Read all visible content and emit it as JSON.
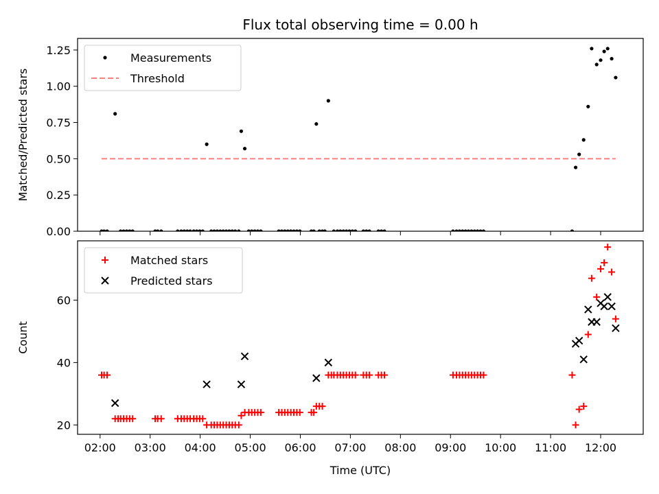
{
  "chart_data": [
    {
      "type": "scatter",
      "title": "Flux total observing time = 0.00 h",
      "ylabel": "Matched/Predicted stars",
      "xlabel": "",
      "xlim": [
        1.55,
        12.85
      ],
      "ylim": [
        0,
        1.33
      ],
      "x_ticks": [
        2,
        3,
        4,
        5,
        6,
        7,
        8,
        9,
        10,
        11,
        12
      ],
      "y_ticks": [
        0.0,
        0.25,
        0.5,
        0.75,
        1.0,
        1.25
      ],
      "y_tick_labels": [
        "0.00",
        "0.25",
        "0.50",
        "0.75",
        "1.00",
        "1.25"
      ],
      "legend_position": "top-left",
      "grid": false,
      "series": [
        {
          "name": "Measurements",
          "marker": "dot",
          "color": "#000000",
          "points": [
            [
              2.03,
              0
            ],
            [
              2.08,
              0
            ],
            [
              2.14,
              0
            ],
            [
              2.3,
              0.81
            ],
            [
              2.41,
              0
            ],
            [
              2.47,
              0
            ],
            [
              2.53,
              0
            ],
            [
              2.59,
              0
            ],
            [
              2.65,
              0
            ],
            [
              3.1,
              0
            ],
            [
              3.15,
              0
            ],
            [
              3.22,
              0
            ],
            [
              3.55,
              0
            ],
            [
              3.62,
              0
            ],
            [
              3.68,
              0
            ],
            [
              3.74,
              0
            ],
            [
              3.8,
              0
            ],
            [
              3.87,
              0
            ],
            [
              3.93,
              0
            ],
            [
              3.99,
              0
            ],
            [
              4.05,
              0
            ],
            [
              4.13,
              0.6
            ],
            [
              4.22,
              0
            ],
            [
              4.28,
              0
            ],
            [
              4.34,
              0
            ],
            [
              4.4,
              0
            ],
            [
              4.46,
              0
            ],
            [
              4.52,
              0
            ],
            [
              4.58,
              0
            ],
            [
              4.64,
              0
            ],
            [
              4.7,
              0
            ],
            [
              4.77,
              0
            ],
            [
              4.82,
              0.69
            ],
            [
              4.89,
              0.57
            ],
            [
              4.97,
              0
            ],
            [
              5.03,
              0
            ],
            [
              5.09,
              0
            ],
            [
              5.15,
              0
            ],
            [
              5.21,
              0
            ],
            [
              5.57,
              0
            ],
            [
              5.63,
              0
            ],
            [
              5.69,
              0
            ],
            [
              5.75,
              0
            ],
            [
              5.81,
              0
            ],
            [
              5.87,
              0
            ],
            [
              5.93,
              0
            ],
            [
              5.99,
              0
            ],
            [
              6.22,
              0
            ],
            [
              6.27,
              0
            ],
            [
              6.32,
              0.74
            ],
            [
              6.38,
              0
            ],
            [
              6.44,
              0
            ],
            [
              6.49,
              0
            ],
            [
              6.56,
              0.9
            ],
            [
              6.67,
              0
            ],
            [
              6.74,
              0
            ],
            [
              6.8,
              0
            ],
            [
              6.86,
              0
            ],
            [
              6.92,
              0
            ],
            [
              6.98,
              0
            ],
            [
              7.04,
              0
            ],
            [
              7.1,
              0
            ],
            [
              7.26,
              0
            ],
            [
              7.32,
              0
            ],
            [
              7.38,
              0
            ],
            [
              7.56,
              0
            ],
            [
              7.62,
              0
            ],
            [
              7.68,
              0
            ],
            [
              9.05,
              0
            ],
            [
              9.12,
              0
            ],
            [
              9.18,
              0
            ],
            [
              9.24,
              0
            ],
            [
              9.3,
              0
            ],
            [
              9.36,
              0
            ],
            [
              9.42,
              0
            ],
            [
              9.48,
              0
            ],
            [
              9.54,
              0
            ],
            [
              9.6,
              0
            ],
            [
              9.66,
              0
            ],
            [
              11.43,
              0
            ],
            [
              11.5,
              0.44
            ],
            [
              11.57,
              0.53
            ],
            [
              11.66,
              0.63
            ],
            [
              11.75,
              0.86
            ],
            [
              11.82,
              1.26
            ],
            [
              11.92,
              1.15
            ],
            [
              12.0,
              1.18
            ],
            [
              12.07,
              1.24
            ],
            [
              12.14,
              1.26
            ],
            [
              12.22,
              1.19
            ],
            [
              12.3,
              1.06
            ]
          ]
        },
        {
          "name": "Threshold",
          "marker": "dashed-line",
          "color": "#ff7f7f",
          "x": [
            2.03,
            12.3
          ],
          "values": [
            0.5,
            0.5
          ]
        }
      ]
    },
    {
      "type": "scatter",
      "title": "",
      "xlabel": "Time (UTC)",
      "ylabel": "Count",
      "xlim": [
        1.55,
        12.85
      ],
      "ylim": [
        17,
        79
      ],
      "x_ticks": [
        2,
        3,
        4,
        5,
        6,
        7,
        8,
        9,
        10,
        11,
        12
      ],
      "x_tick_labels": [
        "02:00",
        "03:00",
        "04:00",
        "05:00",
        "06:00",
        "07:00",
        "08:00",
        "09:00",
        "10:00",
        "11:00",
        "12:00"
      ],
      "y_ticks": [
        20,
        40,
        60
      ],
      "y_tick_labels": [
        "20",
        "40",
        "60"
      ],
      "legend_position": "top-left",
      "grid": false,
      "series": [
        {
          "name": "Matched stars",
          "marker": "plus",
          "color": "#ff0000",
          "points": [
            [
              2.03,
              36
            ],
            [
              2.08,
              36
            ],
            [
              2.14,
              36
            ],
            [
              2.3,
              22
            ],
            [
              2.36,
              22
            ],
            [
              2.41,
              22
            ],
            [
              2.47,
              22
            ],
            [
              2.53,
              22
            ],
            [
              2.59,
              22
            ],
            [
              2.65,
              22
            ],
            [
              3.1,
              22
            ],
            [
              3.15,
              22
            ],
            [
              3.22,
              22
            ],
            [
              3.55,
              22
            ],
            [
              3.62,
              22
            ],
            [
              3.68,
              22
            ],
            [
              3.74,
              22
            ],
            [
              3.8,
              22
            ],
            [
              3.87,
              22
            ],
            [
              3.93,
              22
            ],
            [
              3.99,
              22
            ],
            [
              4.05,
              22
            ],
            [
              4.13,
              20
            ],
            [
              4.22,
              20
            ],
            [
              4.28,
              20
            ],
            [
              4.34,
              20
            ],
            [
              4.4,
              20
            ],
            [
              4.46,
              20
            ],
            [
              4.52,
              20
            ],
            [
              4.58,
              20
            ],
            [
              4.64,
              20
            ],
            [
              4.7,
              20
            ],
            [
              4.77,
              20
            ],
            [
              4.82,
              23
            ],
            [
              4.89,
              24
            ],
            [
              4.97,
              24
            ],
            [
              5.03,
              24
            ],
            [
              5.09,
              24
            ],
            [
              5.15,
              24
            ],
            [
              5.21,
              24
            ],
            [
              5.57,
              24
            ],
            [
              5.63,
              24
            ],
            [
              5.69,
              24
            ],
            [
              5.75,
              24
            ],
            [
              5.81,
              24
            ],
            [
              5.87,
              24
            ],
            [
              5.93,
              24
            ],
            [
              5.99,
              24
            ],
            [
              6.22,
              24
            ],
            [
              6.27,
              24
            ],
            [
              6.32,
              26
            ],
            [
              6.38,
              26
            ],
            [
              6.44,
              26
            ],
            [
              6.56,
              36
            ],
            [
              6.62,
              36
            ],
            [
              6.67,
              36
            ],
            [
              6.74,
              36
            ],
            [
              6.8,
              36
            ],
            [
              6.86,
              36
            ],
            [
              6.92,
              36
            ],
            [
              6.98,
              36
            ],
            [
              7.04,
              36
            ],
            [
              7.1,
              36
            ],
            [
              7.26,
              36
            ],
            [
              7.32,
              36
            ],
            [
              7.38,
              36
            ],
            [
              7.56,
              36
            ],
            [
              7.62,
              36
            ],
            [
              7.68,
              36
            ],
            [
              9.05,
              36
            ],
            [
              9.12,
              36
            ],
            [
              9.18,
              36
            ],
            [
              9.24,
              36
            ],
            [
              9.3,
              36
            ],
            [
              9.36,
              36
            ],
            [
              9.42,
              36
            ],
            [
              9.48,
              36
            ],
            [
              9.54,
              36
            ],
            [
              9.6,
              36
            ],
            [
              9.66,
              36
            ],
            [
              11.43,
              36
            ],
            [
              11.5,
              20
            ],
            [
              11.57,
              25
            ],
            [
              11.66,
              26
            ],
            [
              11.75,
              49
            ],
            [
              11.82,
              67
            ],
            [
              11.92,
              61
            ],
            [
              12.0,
              70
            ],
            [
              12.07,
              72
            ],
            [
              12.14,
              77
            ],
            [
              12.22,
              69
            ],
            [
              12.3,
              54
            ]
          ]
        },
        {
          "name": "Predicted stars",
          "marker": "x",
          "color": "#000000",
          "points": [
            [
              2.3,
              27
            ],
            [
              4.13,
              33
            ],
            [
              4.82,
              33
            ],
            [
              4.89,
              42
            ],
            [
              6.32,
              35
            ],
            [
              6.56,
              40
            ],
            [
              11.5,
              46
            ],
            [
              11.57,
              47
            ],
            [
              11.66,
              41
            ],
            [
              11.75,
              57
            ],
            [
              11.82,
              53
            ],
            [
              11.92,
              53
            ],
            [
              12.0,
              59
            ],
            [
              12.07,
              58
            ],
            [
              12.14,
              61
            ],
            [
              12.22,
              58
            ],
            [
              12.3,
              51
            ]
          ]
        }
      ]
    }
  ]
}
